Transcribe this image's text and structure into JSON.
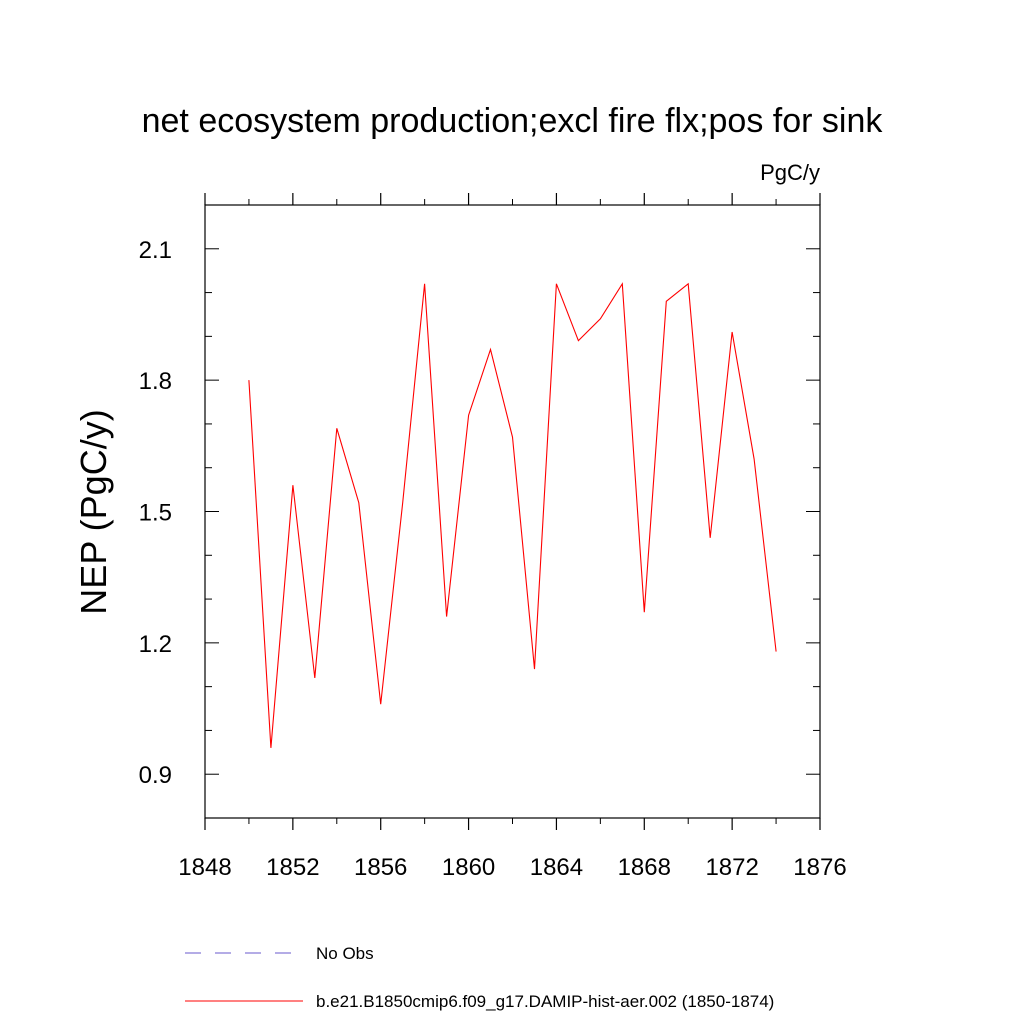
{
  "chart_data": {
    "type": "line",
    "title": "net ecosystem production;excl fire flx;pos for sink",
    "units_label": "PgC/y",
    "xlabel": "",
    "ylabel": "NEP  (PgC/y)",
    "xlim": [
      1848,
      1876
    ],
    "ylim": [
      0.8,
      2.2
    ],
    "xticks": [
      1848,
      1852,
      1856,
      1860,
      1864,
      1868,
      1872,
      1876
    ],
    "yticks": [
      0.9,
      1.2,
      1.5,
      1.8,
      2.1
    ],
    "grid": false,
    "legend_position": "bottom",
    "series": [
      {
        "name": "b.e21.B1850cmip6.f09_g17.DAMIP-hist-aer.002 (1850-1874)",
        "color": "#ff0000",
        "style": "solid",
        "x": [
          1850,
          1851,
          1852,
          1853,
          1854,
          1855,
          1856,
          1857,
          1858,
          1859,
          1860,
          1861,
          1862,
          1863,
          1864,
          1865,
          1866,
          1867,
          1868,
          1869,
          1870,
          1871,
          1872,
          1873,
          1874
        ],
        "y": [
          1.8,
          0.96,
          1.56,
          1.12,
          1.69,
          1.52,
          1.06,
          1.52,
          2.02,
          1.26,
          1.72,
          1.87,
          1.67,
          1.14,
          2.02,
          1.89,
          1.94,
          2.02,
          1.27,
          1.98,
          2.02,
          1.44,
          1.91,
          1.62,
          1.18
        ]
      }
    ],
    "legend": [
      {
        "label": "No Obs",
        "color": "#6a5acd",
        "style": "dashed"
      },
      {
        "label": "b.e21.B1850cmip6.f09_g17.DAMIP-hist-aer.002 (1850-1874)",
        "color": "#ff0000",
        "style": "solid"
      }
    ]
  }
}
